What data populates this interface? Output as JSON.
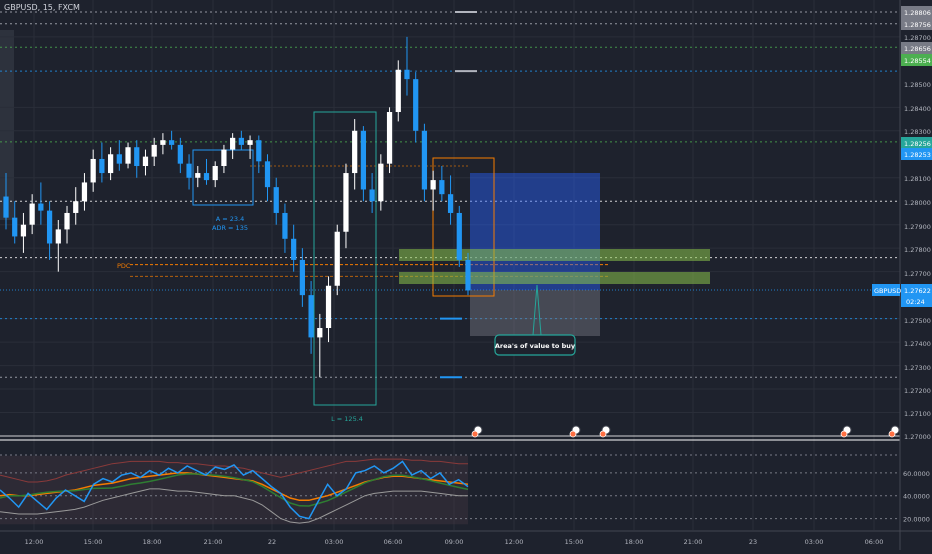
{
  "chart_data": {
    "type": "candlestick",
    "title": "GBPUSD, 15, FXCM",
    "price_axis_labels": [
      "1.28806",
      "1.28756",
      "1.28700",
      "1.28656",
      "1.28554",
      "1.28500",
      "1.28400",
      "1.28300",
      "1.28256",
      "1.28253",
      "1.28100",
      "1.28000",
      "1.27900",
      "1.27800",
      "1.27700",
      "1.27622",
      "1.27500",
      "1.27400",
      "1.27300",
      "1.27200",
      "1.27100",
      "1.27000"
    ],
    "current_price": {
      "symbol": "GBPUSD",
      "price": "1.27622",
      "countdown": "02:24"
    },
    "time_labels": [
      "12:00",
      "15:00",
      "18:00",
      "21:00",
      "22",
      "03:00",
      "06:00",
      "09:00",
      "12:00",
      "15:00",
      "18:00",
      "21:00",
      "23",
      "03:00",
      "06:00"
    ],
    "oscillator_labels": [
      "60.0000",
      "40.0000",
      "20.0000"
    ],
    "annotations": {
      "range_box_label_1": "A = 23.4",
      "range_box_label_2": "ADR = 135",
      "session_range_label": "L = 125.4",
      "pdc_label": "PDC",
      "value_note": "Area's of value to buy"
    },
    "levels": [
      1.28806,
      1.28756,
      1.28656,
      1.28554,
      1.285,
      1.28253,
      1.28,
      1.2776,
      1.27622,
      1.275,
      1.2725,
      1.27
    ],
    "candles": [
      [
        1.2802,
        1.2812,
        1.2788,
        1.2793
      ],
      [
        1.2793,
        1.28,
        1.2782,
        1.2785
      ],
      [
        1.2785,
        1.2795,
        1.2778,
        1.279
      ],
      [
        1.279,
        1.2803,
        1.2786,
        1.2799
      ],
      [
        1.2799,
        1.2808,
        1.279,
        1.2796
      ],
      [
        1.2796,
        1.28,
        1.2775,
        1.2782
      ],
      [
        1.2782,
        1.2792,
        1.277,
        1.2788
      ],
      [
        1.2788,
        1.2798,
        1.2782,
        1.2795
      ],
      [
        1.2795,
        1.2806,
        1.279,
        1.28
      ],
      [
        1.28,
        1.2812,
        1.2796,
        1.2808
      ],
      [
        1.2808,
        1.2822,
        1.2804,
        1.2818
      ],
      [
        1.2818,
        1.2825,
        1.2808,
        1.2812
      ],
      [
        1.2812,
        1.2823,
        1.2809,
        1.282
      ],
      [
        1.282,
        1.2826,
        1.2813,
        1.2816
      ],
      [
        1.2816,
        1.2825,
        1.2814,
        1.2823
      ],
      [
        1.2823,
        1.2826,
        1.281,
        1.2815
      ],
      [
        1.2815,
        1.2822,
        1.2811,
        1.2819
      ],
      [
        1.2819,
        1.2827,
        1.2815,
        1.2824
      ],
      [
        1.2824,
        1.2829,
        1.282,
        1.2826
      ],
      [
        1.2826,
        1.283,
        1.2822,
        1.2824
      ],
      [
        1.2824,
        1.2827,
        1.2812,
        1.2816
      ],
      [
        1.2816,
        1.282,
        1.2805,
        1.281
      ],
      [
        1.281,
        1.2815,
        1.2806,
        1.2812
      ],
      [
        1.2812,
        1.2818,
        1.2807,
        1.2809
      ],
      [
        1.2809,
        1.2817,
        1.2806,
        1.2815
      ],
      [
        1.2815,
        1.2824,
        1.2812,
        1.2822
      ],
      [
        1.2822,
        1.2829,
        1.2818,
        1.2827
      ],
      [
        1.2827,
        1.283,
        1.2822,
        1.2824
      ],
      [
        1.2824,
        1.2828,
        1.2818,
        1.2826
      ],
      [
        1.2826,
        1.2828,
        1.2812,
        1.2817
      ],
      [
        1.2817,
        1.282,
        1.28,
        1.2806
      ],
      [
        1.2806,
        1.281,
        1.279,
        1.2795
      ],
      [
        1.2795,
        1.2799,
        1.2778,
        1.2784
      ],
      [
        1.2784,
        1.279,
        1.277,
        1.2775
      ],
      [
        1.2775,
        1.278,
        1.2755,
        1.276
      ],
      [
        1.276,
        1.2766,
        1.2735,
        1.2742
      ],
      [
        1.2742,
        1.2752,
        1.2725,
        1.2746
      ],
      [
        1.2746,
        1.2768,
        1.274,
        1.2764
      ],
      [
        1.2764,
        1.279,
        1.276,
        1.2787
      ],
      [
        1.2787,
        1.2816,
        1.278,
        1.2812
      ],
      [
        1.2812,
        1.2835,
        1.2805,
        1.283
      ],
      [
        1.283,
        1.2832,
        1.28,
        1.2805
      ],
      [
        1.2805,
        1.2812,
        1.2795,
        1.28
      ],
      [
        1.28,
        1.282,
        1.2796,
        1.2816
      ],
      [
        1.2816,
        1.284,
        1.2812,
        1.2838
      ],
      [
        1.2838,
        1.286,
        1.2834,
        1.2856
      ],
      [
        1.2856,
        1.287,
        1.2845,
        1.2852
      ],
      [
        1.2852,
        1.2855,
        1.2825,
        1.283
      ],
      [
        1.283,
        1.2833,
        1.28,
        1.2805
      ],
      [
        1.2805,
        1.2813,
        1.2796,
        1.2809
      ],
      [
        1.2809,
        1.2815,
        1.28,
        1.2803
      ],
      [
        1.2803,
        1.2811,
        1.279,
        1.2795
      ],
      [
        1.2795,
        1.2798,
        1.2772,
        1.2775
      ],
      [
        1.2775,
        1.2778,
        1.276,
        1.2762
      ]
    ]
  },
  "colors": {
    "background": "#1e222d",
    "bull": "#ffffff",
    "bear": "#2196f3",
    "level_line": "#2196f3",
    "green_zone": "#8bc34a",
    "position_upper": "#2962ff",
    "position_lower": "#787b86",
    "session_box": "#26a69a",
    "orange_box": "#f57c00"
  }
}
